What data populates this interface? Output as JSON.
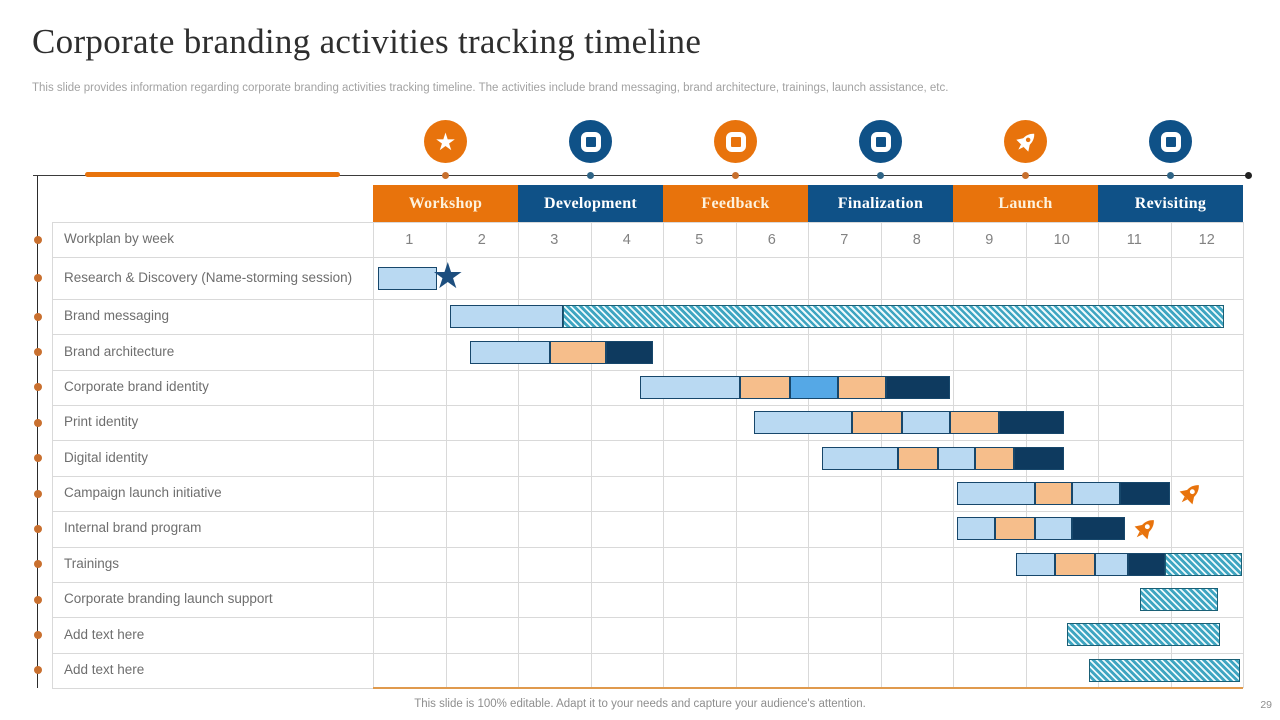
{
  "header": {
    "title": "Corporate branding activities tracking timeline",
    "subtitle": "This slide provides information regarding corporate branding activities tracking timeline. The activities include brand messaging, brand architecture, trainings, launch assistance, etc."
  },
  "footer": {
    "note": "This slide is 100% editable. Adapt it to your needs and capture your audience's attention.",
    "page_number": "29"
  },
  "glyphs": {
    "star": "★"
  },
  "colors": {
    "orange": "#e8730c",
    "blue": "#0f5187",
    "navy": "#0e3a5f",
    "light_blue": "#b9d9f2",
    "peach": "#f6be8b",
    "mid_blue": "#55a8e6",
    "hatch_stripe": "#3ea5c1",
    "hatch_border": "#1a6076",
    "grid": "#d9d9d9",
    "bottom_accent": "#e09a4d",
    "dot_orange": "#c8702e",
    "dot_blue": "#2f6486"
  },
  "milestone_icons": [
    {
      "name": "star-icon",
      "shape": "star",
      "color": "orange"
    },
    {
      "name": "rounded-square-icon",
      "shape": "square",
      "color": "blue"
    },
    {
      "name": "rounded-square-icon",
      "shape": "square",
      "color": "orange"
    },
    {
      "name": "rounded-square-icon",
      "shape": "square",
      "color": "blue"
    },
    {
      "name": "rocket-icon",
      "shape": "rocket",
      "color": "orange"
    },
    {
      "name": "rounded-square-icon",
      "shape": "square",
      "color": "blue"
    }
  ],
  "chart_data": {
    "type": "gantt",
    "week_header_label": "Workplan by week",
    "weeks": [
      "1",
      "2",
      "3",
      "4",
      "5",
      "6",
      "7",
      "8",
      "9",
      "10",
      "11",
      "12"
    ],
    "x_range_weeks": [
      1,
      12
    ],
    "grid": true,
    "phases": [
      {
        "label": "Workshop",
        "color": "orange",
        "weeks": [
          1,
          2
        ]
      },
      {
        "label": "Development",
        "color": "blue",
        "weeks": [
          3,
          4
        ]
      },
      {
        "label": "Feedback",
        "color": "orange",
        "weeks": [
          5,
          6
        ]
      },
      {
        "label": "Finalization",
        "color": "blue",
        "weeks": [
          7,
          8
        ]
      },
      {
        "label": "Launch",
        "color": "orange",
        "weeks": [
          9,
          10
        ]
      },
      {
        "label": "Revisiting",
        "color": "blue",
        "weeks": [
          11,
          12
        ]
      }
    ],
    "tasks": [
      {
        "label": "Research & Discovery (Name-storming session)",
        "segments": [
          {
            "start": 1.07,
            "end": 1.88,
            "fill": "light_blue"
          }
        ],
        "marker": "star"
      },
      {
        "label": "Brand messaging",
        "segments": [
          {
            "start": 2.06,
            "end": 3.62,
            "fill": "light_blue"
          },
          {
            "start": 3.62,
            "end": 12.74,
            "fill": "hatch"
          }
        ]
      },
      {
        "label": "Brand architecture",
        "segments": [
          {
            "start": 2.34,
            "end": 3.44,
            "fill": "light_blue"
          },
          {
            "start": 3.44,
            "end": 4.21,
            "fill": "peach"
          },
          {
            "start": 4.21,
            "end": 4.86,
            "fill": "navy"
          }
        ]
      },
      {
        "label": "Corporate brand identity",
        "segments": [
          {
            "start": 4.68,
            "end": 6.06,
            "fill": "light_blue"
          },
          {
            "start": 6.06,
            "end": 6.75,
            "fill": "peach"
          },
          {
            "start": 6.75,
            "end": 7.41,
            "fill": "mid_blue"
          },
          {
            "start": 7.41,
            "end": 8.08,
            "fill": "peach"
          },
          {
            "start": 8.08,
            "end": 8.96,
            "fill": "navy"
          }
        ]
      },
      {
        "label": "Print identity",
        "segments": [
          {
            "start": 6.26,
            "end": 7.61,
            "fill": "light_blue"
          },
          {
            "start": 7.61,
            "end": 8.3,
            "fill": "peach"
          },
          {
            "start": 8.3,
            "end": 8.96,
            "fill": "light_blue"
          },
          {
            "start": 8.96,
            "end": 9.63,
            "fill": "peach"
          },
          {
            "start": 9.63,
            "end": 10.53,
            "fill": "navy"
          }
        ]
      },
      {
        "label": "Digital identity",
        "segments": [
          {
            "start": 7.19,
            "end": 8.24,
            "fill": "light_blue"
          },
          {
            "start": 8.24,
            "end": 8.79,
            "fill": "peach"
          },
          {
            "start": 8.79,
            "end": 9.3,
            "fill": "light_blue"
          },
          {
            "start": 9.3,
            "end": 9.84,
            "fill": "peach"
          },
          {
            "start": 9.84,
            "end": 10.53,
            "fill": "navy"
          }
        ]
      },
      {
        "label": "Campaign launch initiative",
        "segments": [
          {
            "start": 9.05,
            "end": 10.13,
            "fill": "light_blue"
          },
          {
            "start": 10.13,
            "end": 10.64,
            "fill": "peach"
          },
          {
            "start": 10.64,
            "end": 11.3,
            "fill": "light_blue"
          },
          {
            "start": 11.3,
            "end": 11.99,
            "fill": "navy"
          }
        ],
        "marker": "rocket"
      },
      {
        "label": "Internal brand program",
        "segments": [
          {
            "start": 9.05,
            "end": 9.58,
            "fill": "light_blue"
          },
          {
            "start": 9.58,
            "end": 10.13,
            "fill": "peach"
          },
          {
            "start": 10.13,
            "end": 10.64,
            "fill": "light_blue"
          },
          {
            "start": 10.64,
            "end": 11.37,
            "fill": "navy"
          }
        ],
        "marker": "rocket"
      },
      {
        "label": "Trainings",
        "segments": [
          {
            "start": 9.87,
            "end": 10.41,
            "fill": "light_blue"
          },
          {
            "start": 10.41,
            "end": 10.96,
            "fill": "peach"
          },
          {
            "start": 10.96,
            "end": 11.41,
            "fill": "light_blue"
          },
          {
            "start": 11.41,
            "end": 11.92,
            "fill": "navy"
          },
          {
            "start": 11.92,
            "end": 12.99,
            "fill": "hatch"
          }
        ]
      },
      {
        "label": "Corporate branding launch support",
        "segments": [
          {
            "start": 11.58,
            "end": 12.66,
            "fill": "hatch"
          }
        ]
      },
      {
        "label": "Add text here",
        "segments": [
          {
            "start": 10.57,
            "end": 12.68,
            "fill": "hatch"
          }
        ]
      },
      {
        "label": "Add text here",
        "segments": [
          {
            "start": 10.88,
            "end": 12.96,
            "fill": "hatch"
          }
        ]
      }
    ]
  }
}
